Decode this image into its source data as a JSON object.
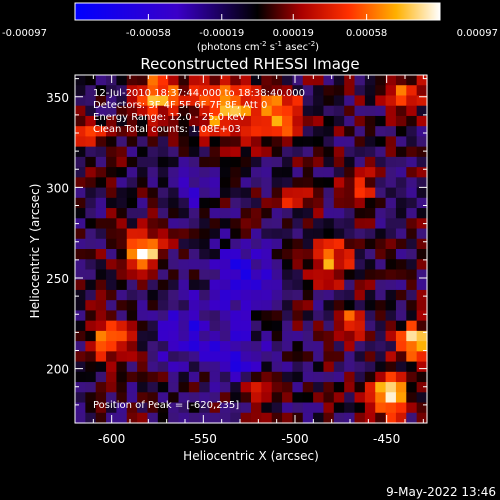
{
  "chart_data": {
    "type": "heatmap",
    "title": "Reconstructed RHESSI Image",
    "xlabel": "Heliocentric X (arcsec)",
    "ylabel": "Heliocentric Y (arcsec)",
    "xlim": [
      -620,
      -428
    ],
    "ylim": [
      170,
      362
    ],
    "x_ticks": [
      -600,
      -550,
      -500,
      -450
    ],
    "y_ticks": [
      200,
      250,
      300,
      350
    ],
    "x_tick_labels": [
      "-600",
      "-550",
      "-500",
      "-450"
    ],
    "y_tick_labels": [
      "200",
      "250",
      "300",
      "350"
    ],
    "colorbar": {
      "ticks": [
        -0.00097,
        -0.00058,
        -0.00019,
        0.00019,
        0.00058,
        0.00097
      ],
      "tick_labels": [
        "-0.00097",
        "-0.00058",
        "-0.00019",
        "0.00019",
        "0.00058",
        "0.00097"
      ],
      "unit_label": "(photons cm",
      "unit_exp1": "-2",
      "unit_mid": " s",
      "unit_exp2": "-1",
      "unit_mid2": " asec",
      "unit_exp3": "-2",
      "unit_end": ")",
      "range": [
        -0.00097,
        0.00097
      ]
    },
    "annotations": [
      "12-Jul-2010 18:37:44.000 to 18:38:40.000",
      "Detectors: 3F 4F 5F 6F 7F 8F, Att 0",
      "Energy Range: 12.0 - 25.0 keV",
      "Clean    Total counts: 1.08E+03"
    ],
    "peak_label": "Position of Peak = [-620,235]",
    "peak": [
      -620,
      235
    ],
    "grid_size": [
      34,
      34
    ],
    "hot_regions": [
      {
        "x": -583,
        "y": 265,
        "r": 10,
        "v": 0.0009
      },
      {
        "x": -540,
        "y": 345,
        "r": 16,
        "v": 0.0008
      },
      {
        "x": -510,
        "y": 340,
        "r": 14,
        "v": 0.00075
      },
      {
        "x": -575,
        "y": 352,
        "r": 12,
        "v": 0.0007
      },
      {
        "x": -450,
        "y": 185,
        "r": 12,
        "v": 0.0009
      },
      {
        "x": -435,
        "y": 215,
        "r": 10,
        "v": 0.0008
      },
      {
        "x": -600,
        "y": 215,
        "r": 10,
        "v": 0.0007
      },
      {
        "x": -480,
        "y": 260,
        "r": 12,
        "v": 0.0006
      },
      {
        "x": -465,
        "y": 300,
        "r": 8,
        "v": 0.0006
      },
      {
        "x": -440,
        "y": 350,
        "r": 10,
        "v": 0.0006
      },
      {
        "x": -520,
        "y": 190,
        "r": 8,
        "v": 0.0005
      },
      {
        "x": -610,
        "y": 330,
        "r": 8,
        "v": 0.0006
      },
      {
        "x": -470,
        "y": 225,
        "r": 8,
        "v": 0.0006
      },
      {
        "x": -500,
        "y": 295,
        "r": 8,
        "v": 0.0005
      }
    ],
    "cold_regions": [
      {
        "x": -530,
        "y": 250,
        "r": 18,
        "v": -0.0006
      },
      {
        "x": -560,
        "y": 220,
        "r": 18,
        "v": -0.0005
      },
      {
        "x": -530,
        "y": 205,
        "r": 16,
        "v": -0.0005
      },
      {
        "x": -555,
        "y": 300,
        "r": 12,
        "v": -0.0004
      }
    ]
  },
  "timestamp": "9-May-2022 13:46"
}
